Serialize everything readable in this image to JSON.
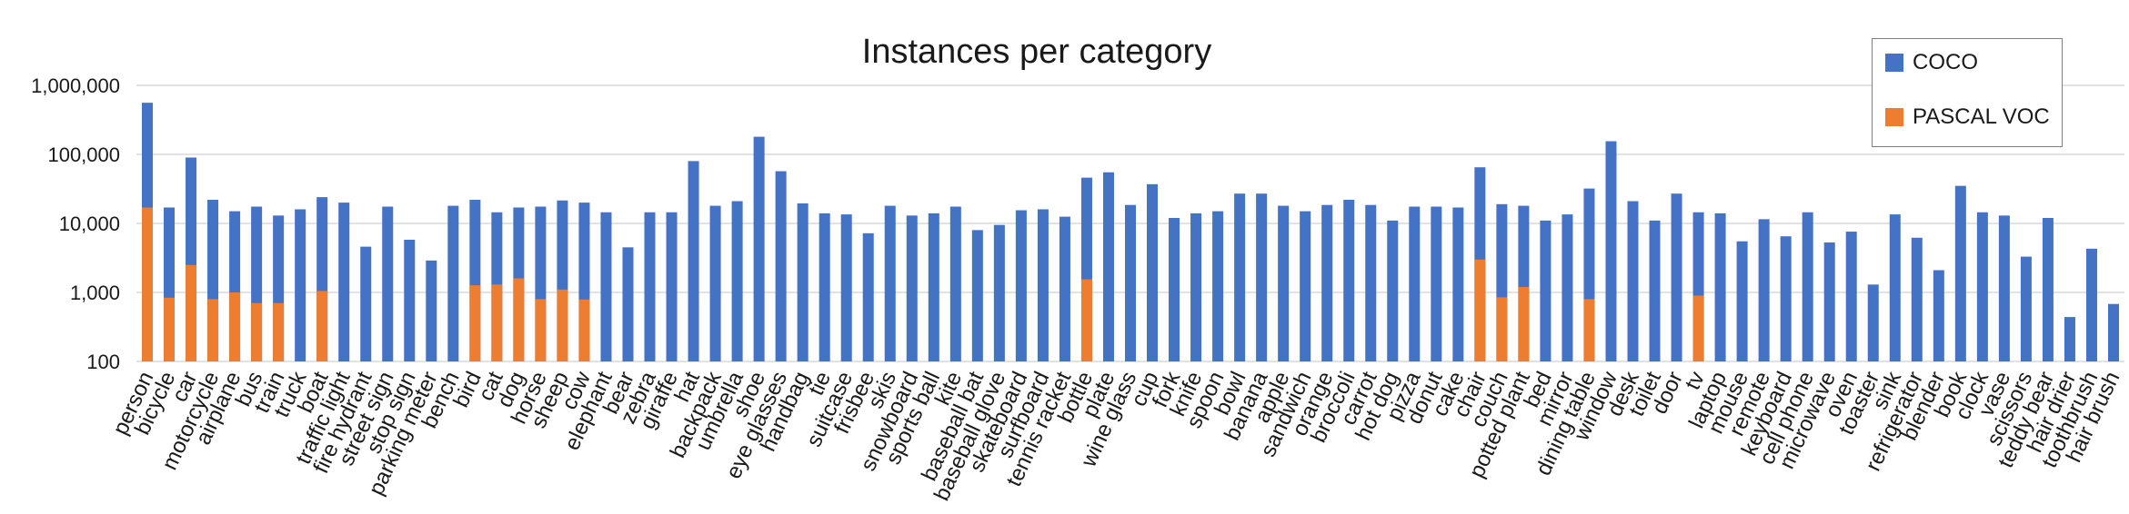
{
  "chart_data": {
    "type": "bar",
    "title": "Instances per category",
    "y_scale": "log",
    "ylim": [
      100,
      1000000
    ],
    "yticks": [
      "100",
      "1,000",
      "10,000",
      "100,000",
      "1,000,000"
    ],
    "ytick_values": [
      100,
      1000,
      10000,
      100000,
      1000000
    ],
    "grid": true,
    "legend_position": "top-right",
    "colors": {
      "coco": "#4472c4",
      "voc": "#ed7d31",
      "grid": "#d9d9d9"
    },
    "categories": [
      "person",
      "bicycle",
      "car",
      "motorcycle",
      "airplane",
      "bus",
      "train",
      "truck",
      "boat",
      "traffic light",
      "fire hydrant",
      "street sign",
      "stop sign",
      "parking meter",
      "bench",
      "bird",
      "cat",
      "dog",
      "horse",
      "sheep",
      "cow",
      "elephant",
      "bear",
      "zebra",
      "giraffe",
      "hat",
      "backpack",
      "umbrella",
      "shoe",
      "eye glasses",
      "handbag",
      "tie",
      "suitcase",
      "frisbee",
      "skis",
      "snowboard",
      "sports ball",
      "kite",
      "baseball bat",
      "baseball glove",
      "skateboard",
      "surfboard",
      "tennis racket",
      "bottle",
      "plate",
      "wine glass",
      "cup",
      "fork",
      "knife",
      "spoon",
      "bowl",
      "banana",
      "apple",
      "sandwich",
      "orange",
      "broccoli",
      "carrot",
      "hot dog",
      "pizza",
      "donut",
      "cake",
      "chair",
      "couch",
      "potted plant",
      "bed",
      "mirror",
      "dining table",
      "window",
      "desk",
      "toilet",
      "door",
      "tv",
      "laptop",
      "mouse",
      "remote",
      "keyboard",
      "cell phone",
      "microwave",
      "oven",
      "toaster",
      "sink",
      "refrigerator",
      "blender",
      "book",
      "clock",
      "vase",
      "scissors",
      "teddy bear",
      "hair drier",
      "toothbrush",
      "hair brush"
    ],
    "series": [
      {
        "name": "COCO",
        "values": [
          560000,
          17000,
          90000,
          22000,
          15000,
          17500,
          13000,
          16000,
          24000,
          20000,
          4600,
          17500,
          5800,
          2900,
          18000,
          22000,
          14500,
          17000,
          17500,
          21500,
          20000,
          14500,
          4500,
          14500,
          14500,
          80000,
          18000,
          21000,
          180000,
          57000,
          19500,
          14000,
          13500,
          7200,
          18000,
          13000,
          14000,
          17500,
          8000,
          9500,
          15500,
          16000,
          12500,
          46000,
          55000,
          18500,
          37000,
          12000,
          14000,
          15000,
          27000,
          27000,
          18000,
          15000,
          18500,
          22000,
          18500,
          11000,
          17500,
          17500,
          17000,
          65000,
          19000,
          18000,
          11000,
          13500,
          32000,
          155000,
          21000,
          11000,
          27000,
          14500,
          14000,
          5500,
          11500,
          6500,
          14500,
          5300,
          7600,
          1300,
          13500,
          6200,
          2100,
          35000,
          14500,
          13000,
          3300,
          12000,
          440,
          4300,
          680
        ]
      },
      {
        "name": "PASCAL VOC",
        "values": [
          17000,
          840,
          2500,
          800,
          1000,
          700,
          700,
          0,
          1050,
          0,
          0,
          0,
          0,
          0,
          0,
          1270,
          1300,
          1600,
          800,
          1100,
          790,
          0,
          0,
          0,
          0,
          0,
          0,
          0,
          0,
          0,
          0,
          0,
          0,
          0,
          0,
          0,
          0,
          0,
          0,
          0,
          0,
          0,
          0,
          1550,
          0,
          0,
          0,
          0,
          0,
          0,
          0,
          0,
          0,
          0,
          0,
          0,
          0,
          0,
          0,
          0,
          0,
          3000,
          850,
          1200,
          0,
          0,
          800,
          0,
          0,
          0,
          0,
          900,
          0,
          0,
          0,
          0,
          0,
          0,
          0,
          0,
          0,
          0,
          0,
          0,
          0,
          0,
          0,
          0,
          0,
          0,
          0
        ]
      }
    ]
  }
}
